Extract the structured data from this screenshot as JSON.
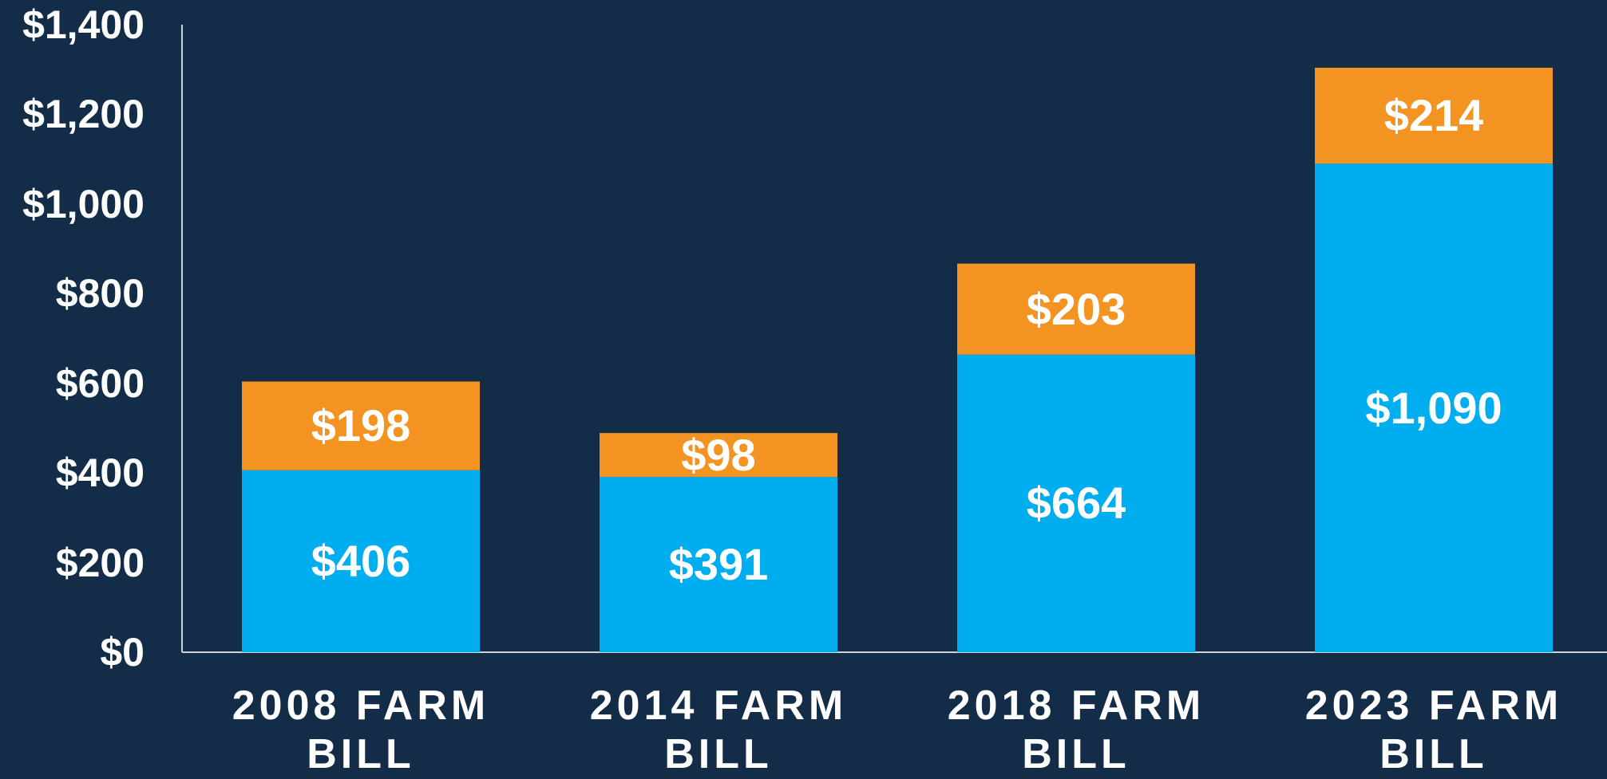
{
  "chart_data": {
    "type": "bar",
    "stacked": true,
    "categories": [
      "2008 FARM BILL",
      "2014 FARM BILL",
      "2018 FARM BILL",
      "2023 FARM BILL"
    ],
    "series": [
      {
        "color": "#00aeef",
        "values": [
          406,
          391,
          664,
          1090
        ],
        "value_labels": [
          "$406",
          "$391",
          "$664",
          "$1,090"
        ]
      },
      {
        "color": "#f39322",
        "values": [
          198,
          98,
          203,
          214
        ],
        "value_labels": [
          "$198",
          "$98",
          "$203",
          "$214"
        ]
      }
    ],
    "ylim": [
      0,
      1400
    ],
    "yticks": [
      {
        "value": 0,
        "label": "$0"
      },
      {
        "value": 200,
        "label": "$200"
      },
      {
        "value": 400,
        "label": "$400"
      },
      {
        "value": 600,
        "label": "$600"
      },
      {
        "value": 800,
        "label": "$800"
      },
      {
        "value": 1000,
        "label": "$1,000"
      },
      {
        "value": 1200,
        "label": "$1,200"
      },
      {
        "value": 1400,
        "label": "$1,400"
      }
    ],
    "grid": false
  }
}
